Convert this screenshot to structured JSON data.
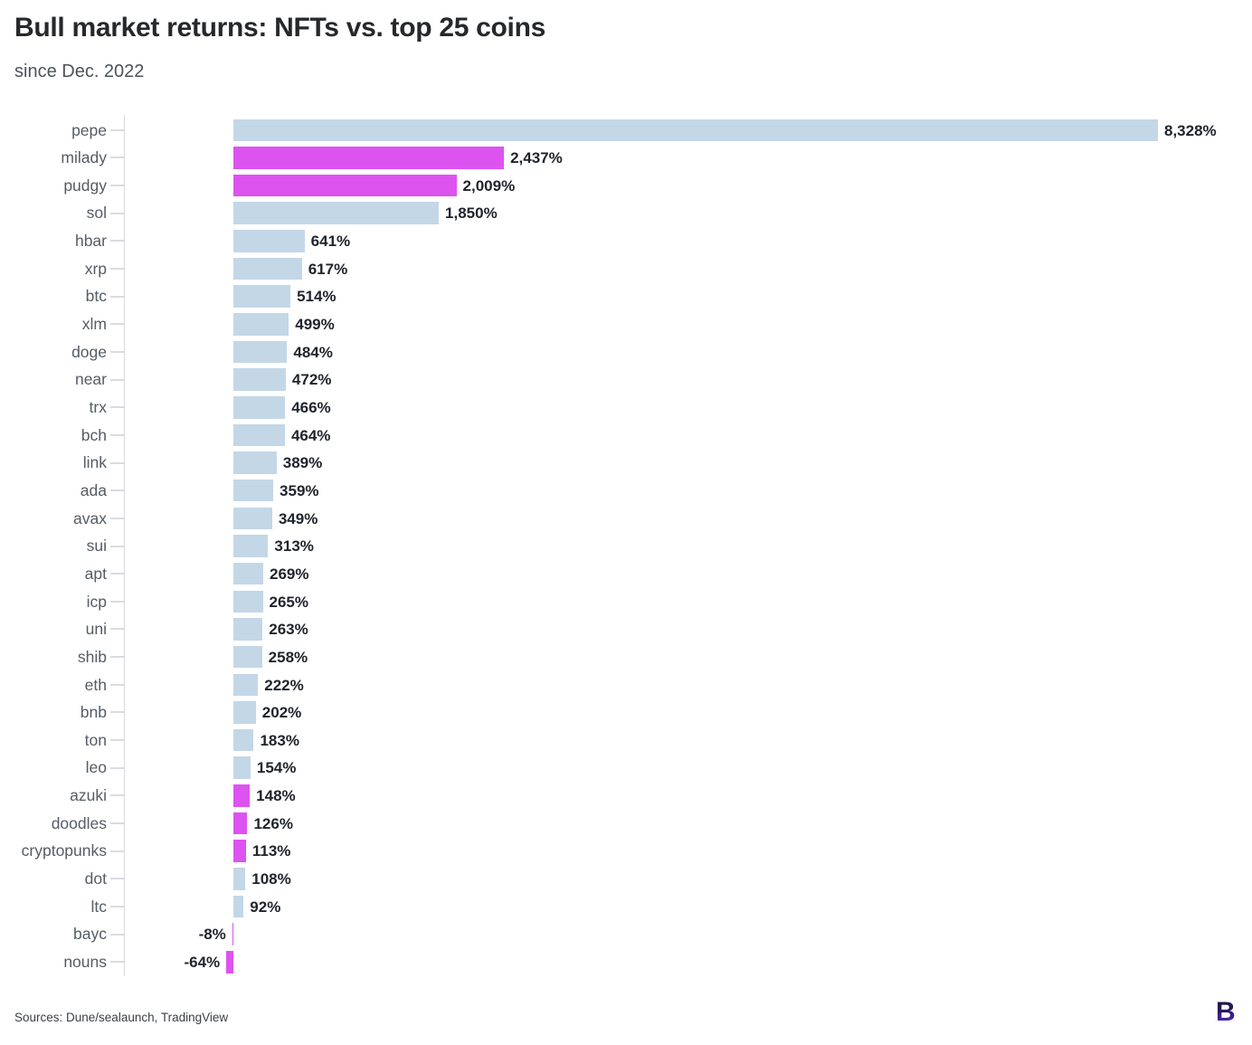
{
  "header": {
    "title": "Bull market returns: NFTs vs. top 25 coins",
    "subtitle": "since Dec. 2022"
  },
  "footer": {
    "sources": "Sources: Dune/sealaunch, TradingView",
    "logo_letter": "B"
  },
  "colors": {
    "coin_bar": "#c3d7e7",
    "nft_bar": "#dd53f0",
    "axis": "#d6d9dd",
    "category_label": "#565c66",
    "value_label": "#20242c"
  },
  "chart_data": {
    "type": "bar",
    "orientation": "horizontal",
    "title": "Bull market returns: NFTs vs. top 25 coins",
    "subtitle": "since Dec. 2022",
    "unit": "%",
    "grid": false,
    "legend": false,
    "categories": [
      "pepe",
      "milady",
      "pudgy",
      "sol",
      "hbar",
      "xrp",
      "btc",
      "xlm",
      "doge",
      "near",
      "trx",
      "bch",
      "link",
      "ada",
      "avax",
      "sui",
      "apt",
      "icp",
      "uni",
      "shib",
      "eth",
      "bnb",
      "ton",
      "leo",
      "azuki",
      "doodles",
      "cryptopunks",
      "dot",
      "ltc",
      "bayc",
      "nouns"
    ],
    "values": [
      8328,
      2437,
      2009,
      1850,
      641,
      617,
      514,
      499,
      484,
      472,
      466,
      464,
      389,
      359,
      349,
      313,
      269,
      265,
      263,
      258,
      222,
      202,
      183,
      154,
      148,
      126,
      113,
      108,
      92,
      -8,
      -64
    ],
    "labels": [
      "8,328%",
      "2,437%",
      "2,009%",
      "1,850%",
      "641%",
      "617%",
      "514%",
      "499%",
      "484%",
      "472%",
      "466%",
      "464%",
      "389%",
      "359%",
      "349%",
      "313%",
      "269%",
      "265%",
      "263%",
      "258%",
      "222%",
      "202%",
      "183%",
      "154%",
      "148%",
      "126%",
      "113%",
      "108%",
      "92%",
      "-8%",
      "-64%"
    ],
    "item_type": [
      "coin",
      "nft",
      "nft",
      "coin",
      "coin",
      "coin",
      "coin",
      "coin",
      "coin",
      "coin",
      "coin",
      "coin",
      "coin",
      "coin",
      "coin",
      "coin",
      "coin",
      "coin",
      "coin",
      "coin",
      "coin",
      "coin",
      "coin",
      "coin",
      "nft",
      "nft",
      "nft",
      "coin",
      "coin",
      "nft",
      "nft"
    ],
    "series_by_color": {
      "coin": "#c3d7e7",
      "nft": "#dd53f0"
    }
  }
}
